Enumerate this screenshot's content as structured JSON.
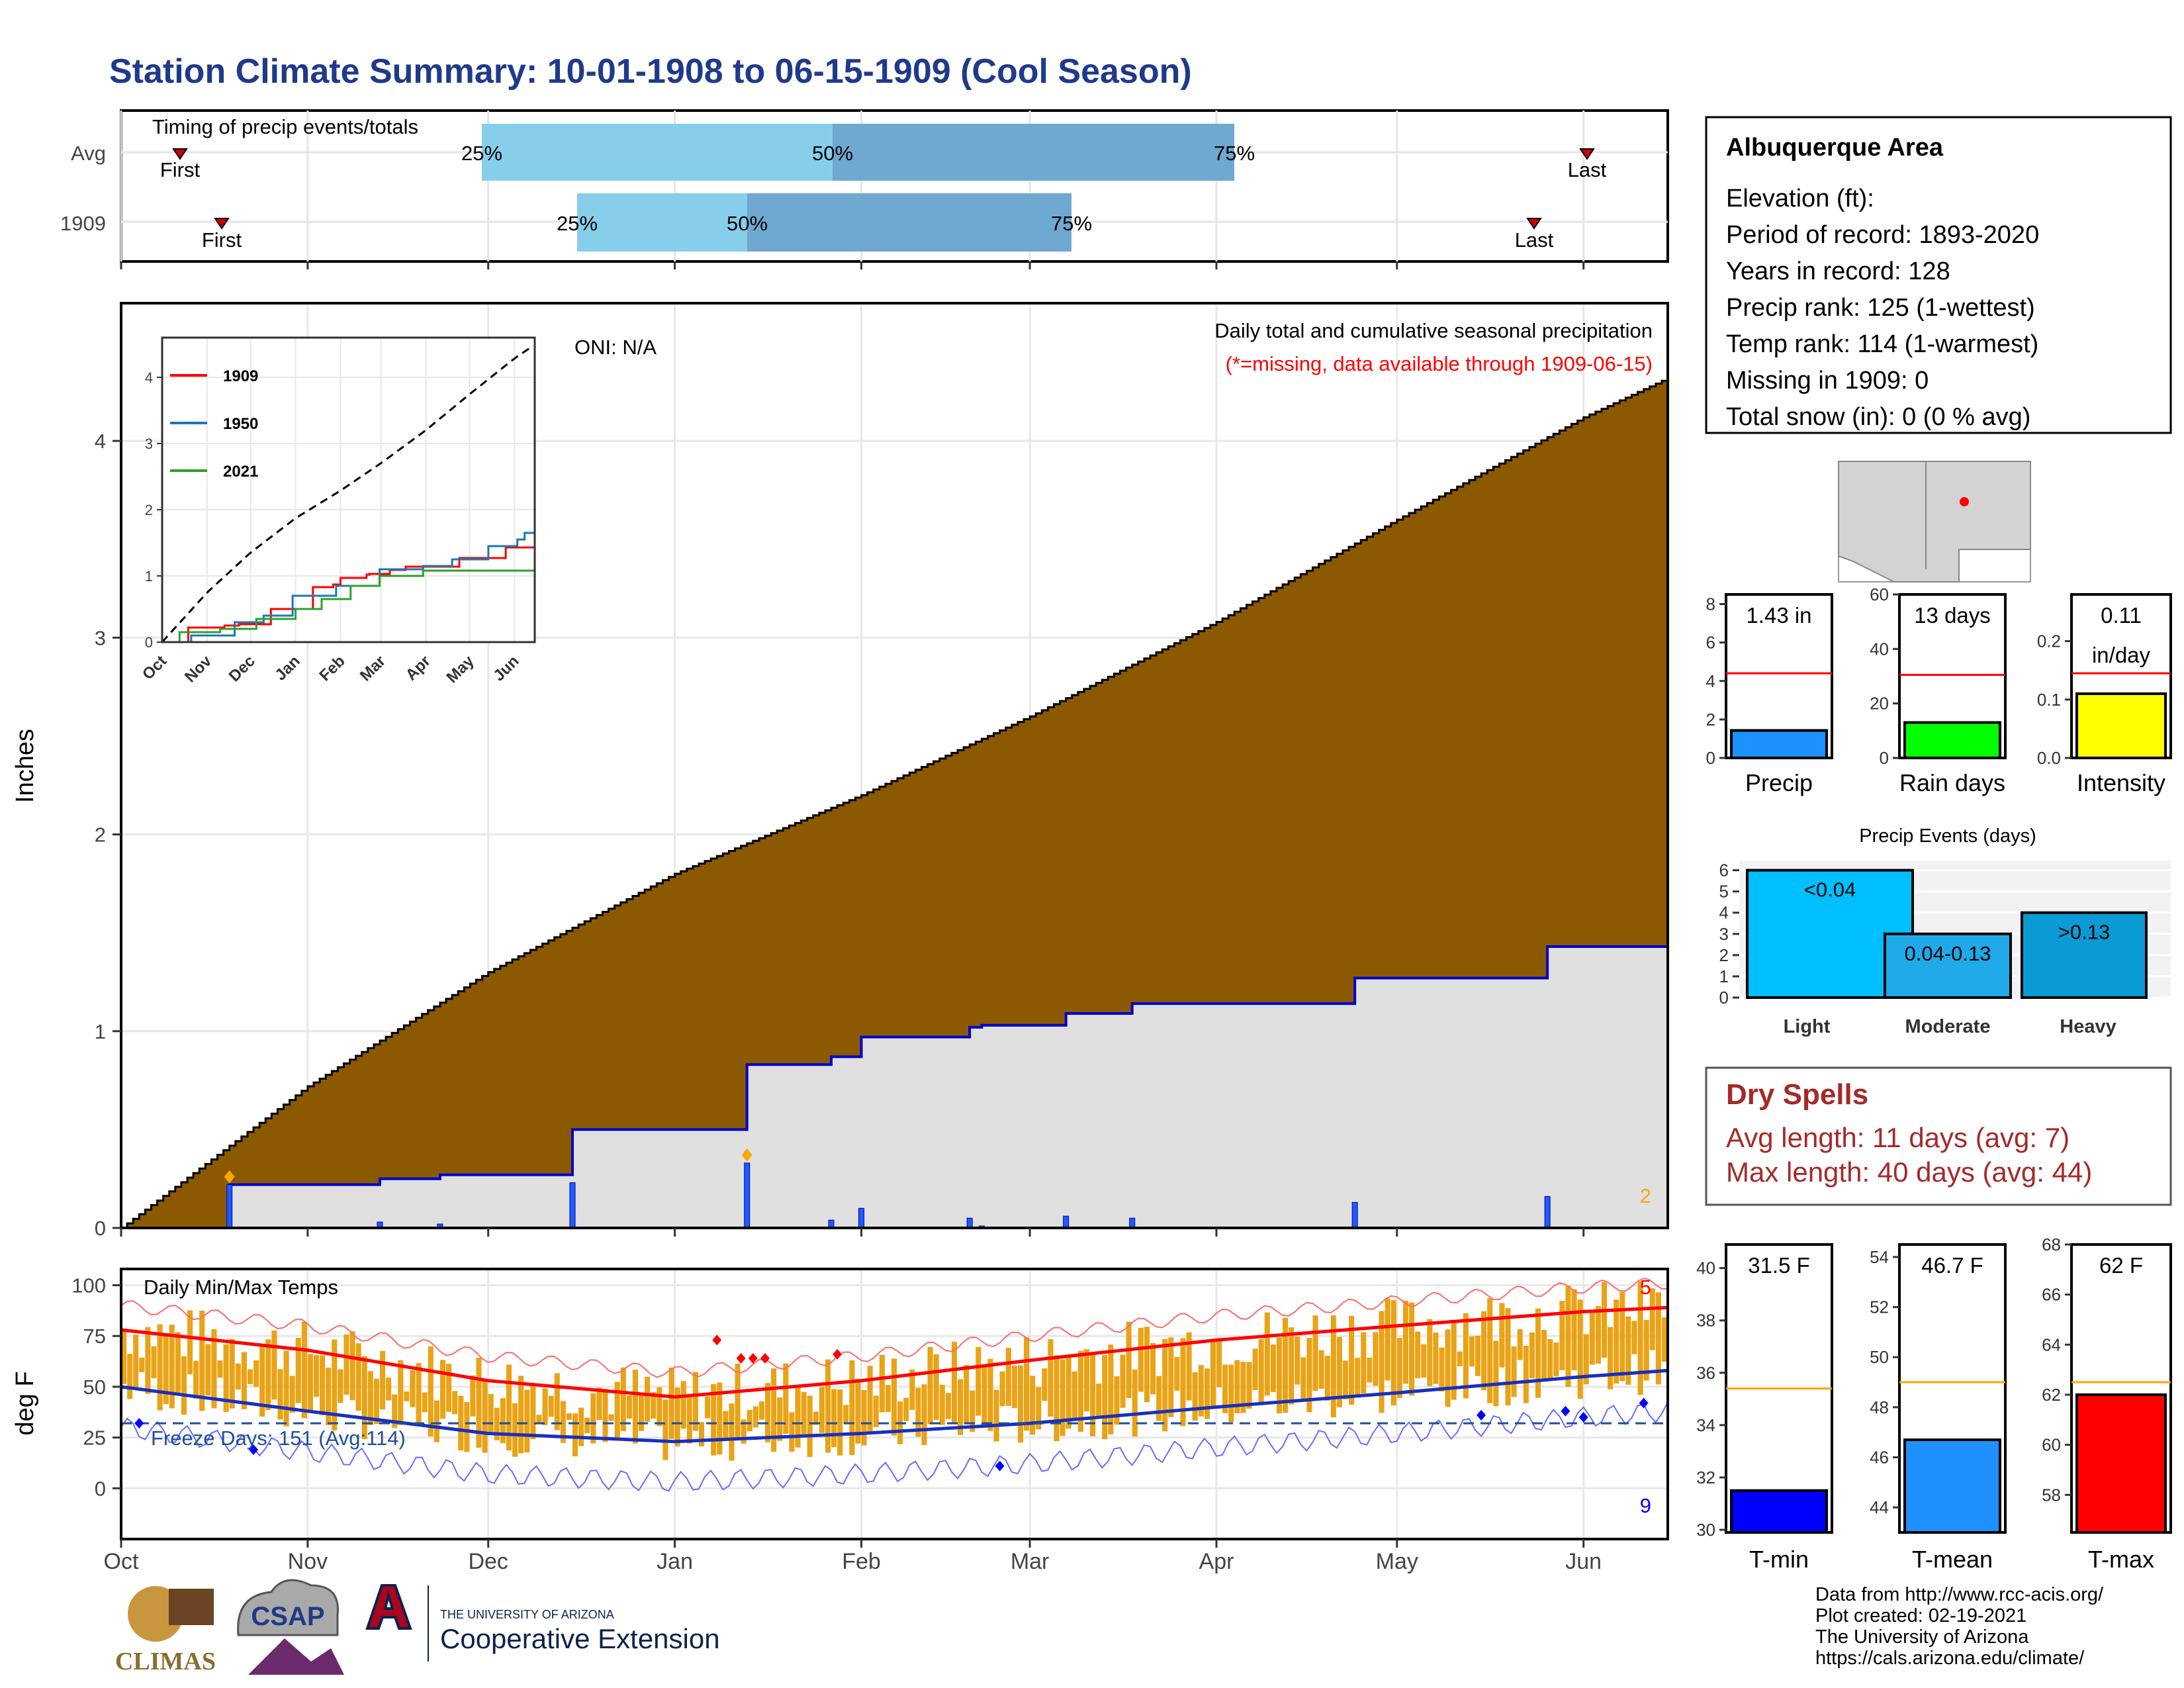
{
  "title": "Station Climate Summary: 10-01-1908 to 06-15-1909 (Cool Season)",
  "timing": {
    "label": "Timing of precip events/totals",
    "rows": [
      {
        "name": "Avg",
        "first": "Oct 11",
        "last": "Jun 1",
        "q25": "Nov 30",
        "q50": "Jan 28",
        "q75": "Apr 1"
      },
      {
        "name": "1909",
        "first": "Oct 18",
        "last": "May 23",
        "q25": "Dec 16",
        "q50": "Jan 13",
        "q75": "Mar 7"
      }
    ],
    "first_label": "First",
    "last_label": "Last",
    "pct_labels": [
      "25%",
      "50%",
      "75%"
    ]
  },
  "info": {
    "area": "Albuquerque Area",
    "lines": [
      "Elevation (ft):",
      "Period of record: 1893-2020",
      "Years in record: 128",
      "Precip rank: 125 (1-wettest)",
      "Temp rank: 114 (1-warmest)",
      "Missing in 1909: 0",
      "Total snow (in): 0 (0 % avg)"
    ]
  },
  "precip_panel": {
    "ylabel": "Inches",
    "oni": "ONI: N/A",
    "subtitle1": "Daily total and cumulative seasonal precipitation",
    "subtitle2": "(*=missing, data available through 1909-06-15)",
    "corner_count": "2",
    "y_ticks": [
      "0",
      "1",
      "2",
      "3",
      "4"
    ],
    "colors": {
      "avg": "#8B5A00",
      "obs": "#E0E0E0",
      "line": "#0000CC",
      "marker": "#FFA500"
    }
  },
  "inset": {
    "legend": [
      "1909",
      "1950",
      "2021"
    ],
    "colors": [
      "#FF0000",
      "#1F77B4",
      "#2CA02C"
    ],
    "y_ticks": [
      "0",
      "1",
      "2",
      "3",
      "4"
    ],
    "x_ticks": [
      "Oct",
      "Nov",
      "Dec",
      "Jan",
      "Feb",
      "Mar",
      "Apr",
      "May",
      "Jun"
    ]
  },
  "temp_panel": {
    "ylabel": "deg F",
    "label": "Daily Min/Max Temps",
    "freeze": "Freeze Days: 151 (Avg:114)",
    "count_high": "5",
    "count_low": "9",
    "y_ticks": [
      "0",
      "25",
      "50",
      "75",
      "100"
    ]
  },
  "months": [
    "Oct",
    "Nov",
    "Dec",
    "Jan",
    "Feb",
    "Mar",
    "Apr",
    "May",
    "Jun"
  ],
  "precip_bars": [
    {
      "label": "Precip",
      "value": "1.43 in",
      "ticks": [
        "0",
        "2",
        "4",
        "6",
        "8"
      ],
      "color": "#1E90FF"
    },
    {
      "label": "Rain days",
      "value": "13 days",
      "ticks": [
        "0",
        "20",
        "40",
        "60"
      ],
      "color": "#00FF00"
    },
    {
      "label": "Intensity",
      "value1": "0.11",
      "value2": "in/day",
      "ticks": [
        "0.0",
        "0.1",
        "0.2"
      ],
      "color": "#FFFF00"
    }
  ],
  "events": {
    "title": "Precip Events (days)",
    "ticks": [
      "0",
      "1",
      "2",
      "3",
      "4",
      "5",
      "6"
    ],
    "bars": [
      {
        "label": "Light",
        "value": "<0.04",
        "count": 6,
        "color": "#00BFFF"
      },
      {
        "label": "Moderate",
        "value": "0.04-0.13",
        "count": 3,
        "color": "#1FA9E8"
      },
      {
        "label": "Heavy",
        "value": ">0.13",
        "count": 4,
        "color": "#0A9AD4"
      }
    ]
  },
  "dry_spells": {
    "title": "Dry Spells",
    "line1": "Avg length: 11 days (avg: 7)",
    "line2": "Max length: 40 days (avg: 44)",
    "color": "#A52A2A"
  },
  "temp_bars": [
    {
      "label": "T-min",
      "value": "31.5 F",
      "ticks": [
        "30",
        "32",
        "34",
        "36",
        "38",
        "40"
      ],
      "color": "#0000FF"
    },
    {
      "label": "T-mean",
      "value": "46.7 F",
      "ticks": [
        "44",
        "46",
        "48",
        "50",
        "52",
        "54"
      ],
      "color": "#1E90FF"
    },
    {
      "label": "T-max",
      "value": "62 F",
      "ticks": [
        "58",
        "60",
        "62",
        "64",
        "66",
        "68"
      ],
      "color": "#FF0000"
    }
  ],
  "footer": [
    "Data from http://www.rcc-acis.org/",
    "Plot created: 02-19-2021",
    "The University of Arizona",
    "https://cals.arizona.edu/climate/"
  ],
  "logos": {
    "climas": "CLIMAS",
    "csap": "CSAP",
    "ua_line1": "THE UNIVERSITY OF ARIZONA",
    "ua_line2": "Cooperative Extension"
  },
  "chart_data": [
    {
      "type": "area",
      "title": "Daily total and cumulative seasonal precipitation",
      "ylabel": "Inches",
      "ylim": [
        0,
        4.7
      ],
      "x": [
        "Oct 1",
        "Nov 1",
        "Dec 1",
        "Jan 1",
        "Feb 1",
        "Mar 1",
        "Apr 1",
        "May 1",
        "Jun 1",
        "Jun 15"
      ],
      "series": [
        {
          "values": [
            0,
            0.72,
            1.3,
            1.8,
            2.2,
            2.6,
            3.08,
            3.6,
            4.12,
            4.32
          ]
        },
        {
          "name": "1909",
          "values": [
            0,
            0.22,
            0.27,
            0.5,
            0.83,
            1.03,
            1.15,
            1.27,
            1.43,
            1.43
          ]
        }
      ]
    },
    {
      "type": "line",
      "xlabel": "",
      "ylim": [
        -20,
        105
      ],
      "x": [
        "Oct 1",
        "Nov 1",
        "Dec 1",
        "Jan 1",
        "Feb 1",
        "Mar 1",
        "Apr 1",
        "May 1",
        "Jun 1",
        "Jun 15"
      ],
      "series": [
        {
          "values": [
            78,
            68,
            53,
            45,
            53,
            63,
            73,
            80,
            87,
            89
          ]
        },
        {
          "values": [
            50,
            38,
            27,
            23,
            27,
            32,
            40,
            47,
            55,
            58
          ]
        }
      ]
    }
  ]
}
